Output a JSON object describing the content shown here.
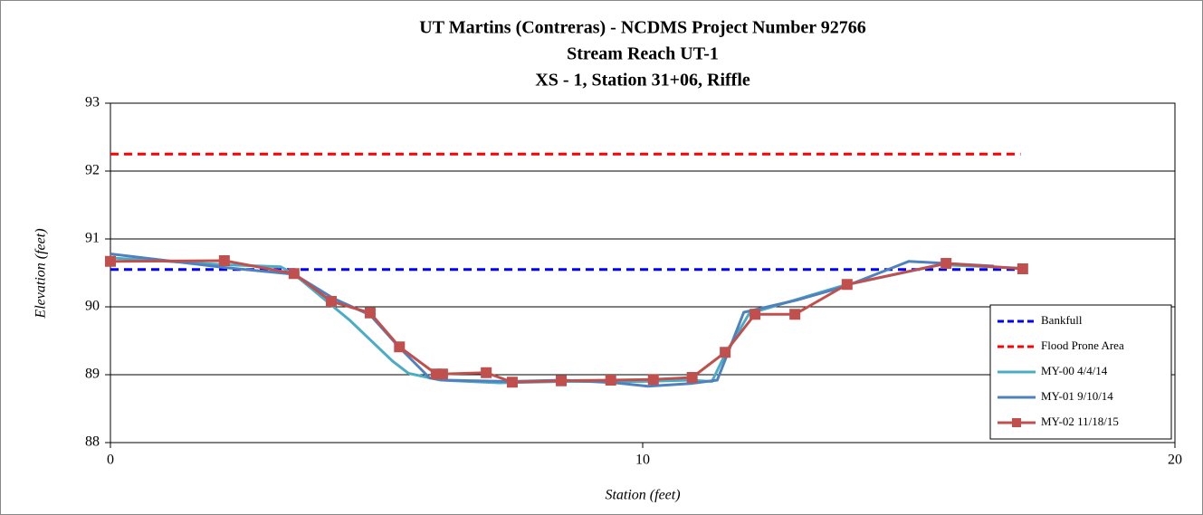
{
  "chart_data": {
    "type": "line",
    "title": [
      "UT Martins (Contreras) - NCDMS Project Number 92766",
      "Stream Reach UT-1",
      "XS - 1, Station 31+06, Riffle"
    ],
    "x_label": "Station (feet)",
    "y_label": "Elevation (feet)",
    "xlim": [
      0,
      20
    ],
    "xticks": [
      0,
      10,
      20
    ],
    "ylim": [
      88,
      93
    ],
    "yticks": [
      88,
      89,
      90,
      91,
      92,
      93
    ],
    "grid": true,
    "legend": "lower right",
    "series": [
      {
        "name": "Bankfull",
        "color": "#0000ff",
        "dashed": true,
        "x": [
          0,
          17.1
        ],
        "values": [
          90.55,
          90.55
        ]
      },
      {
        "name": "Flood Prone Area",
        "color": "#ff0000",
        "dashed": true,
        "x": [
          0,
          17.1
        ],
        "values": [
          92.25,
          92.25
        ]
      },
      {
        "name": "MY-00 4/4/14",
        "color": "#4bacc6",
        "x": [
          0,
          2.14,
          3.2,
          3.45,
          4.5,
          5.3,
          5.6,
          6.2,
          7.3,
          8.5,
          10,
          10.9,
          11.3,
          11.55,
          12.0,
          13.8,
          15.6,
          17.1
        ],
        "values": [
          90.72,
          90.62,
          90.59,
          90.48,
          89.8,
          89.2,
          89.02,
          88.92,
          88.88,
          88.9,
          88.9,
          88.92,
          88.9,
          89.3,
          89.9,
          90.32,
          90.62,
          90.57
        ]
      },
      {
        "name": "MY-01 9/10/14",
        "color": "#4f81bd",
        "x": [
          0,
          2.14,
          3.45,
          4.2,
          4.88,
          5.43,
          6.0,
          6.3,
          7.5,
          8.5,
          9.5,
          10.1,
          10.9,
          11.4,
          11.9,
          12.9,
          13.8,
          15.0,
          16.6
        ],
        "values": [
          90.78,
          90.58,
          90.48,
          90.12,
          89.88,
          89.4,
          88.95,
          88.92,
          88.9,
          88.92,
          88.88,
          88.83,
          88.87,
          88.92,
          89.92,
          90.1,
          90.3,
          90.67,
          90.6
        ]
      },
      {
        "name": "MY-02 11/18/15",
        "color": "#c0504d",
        "marker": "square",
        "x": [
          0,
          2.14,
          3.45,
          4.15,
          4.88,
          5.43,
          6.12,
          6.24,
          7.06,
          7.55,
          8.47,
          9.4,
          10.2,
          10.93,
          11.55,
          12.11,
          12.86,
          13.84,
          15.7,
          17.14
        ],
        "values": [
          90.67,
          90.68,
          90.49,
          90.08,
          89.91,
          89.41,
          89.01,
          89.01,
          89.03,
          88.89,
          88.91,
          88.92,
          88.93,
          88.96,
          89.33,
          89.89,
          89.89,
          90.33,
          90.64,
          90.56
        ]
      }
    ]
  }
}
